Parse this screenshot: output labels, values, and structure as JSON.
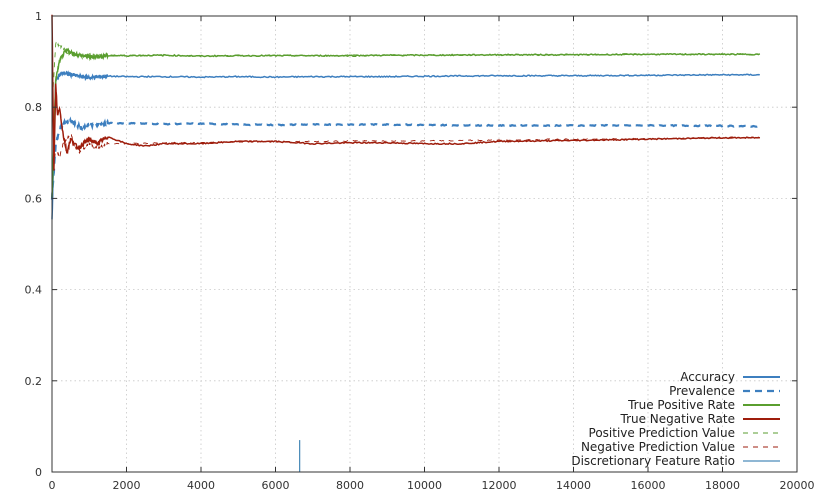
{
  "chart_data": {
    "type": "line",
    "title": "",
    "xlabel": "",
    "ylabel": "",
    "xlim": [
      0,
      20000
    ],
    "ylim": [
      0,
      1
    ],
    "x_ticks": [
      0,
      2000,
      4000,
      6000,
      8000,
      10000,
      12000,
      14000,
      16000,
      18000,
      20000
    ],
    "y_ticks": [
      0,
      0.2,
      0.4,
      0.6,
      0.8,
      1
    ],
    "x_tick_labels": [
      "0",
      "2000",
      "4000",
      "6000",
      "8000",
      "10000",
      "12000",
      "14000",
      "16000",
      "18000",
      "20000"
    ],
    "y_tick_labels": [
      "0",
      "0.2",
      "0.4",
      "0.6",
      "0.8",
      "1"
    ],
    "grid": true,
    "legend_position": "bottom-right",
    "series": [
      {
        "name": "Accuracy",
        "color": "#3d7fbf",
        "style": "solid",
        "x": [
          0,
          100,
          200,
          300,
          400,
          500,
          700,
          1000,
          1500,
          2000,
          3000,
          4000,
          5000,
          6000,
          7000,
          8000,
          9000,
          10000,
          12000,
          14000,
          16000,
          18000,
          19000
        ],
        "y": [
          0.55,
          0.86,
          0.87,
          0.875,
          0.873,
          0.872,
          0.868,
          0.865,
          0.868,
          0.867,
          0.867,
          0.866,
          0.867,
          0.866,
          0.867,
          0.867,
          0.867,
          0.868,
          0.869,
          0.869,
          0.87,
          0.871,
          0.871
        ]
      },
      {
        "name": "Prevalence",
        "color": "#3d7fbf",
        "style": "dashed",
        "x": [
          0,
          100,
          200,
          300,
          500,
          800,
          1000,
          1500,
          2000,
          3000,
          4000,
          5000,
          6000,
          7000,
          8000,
          9000,
          10000,
          12000,
          14000,
          16000,
          18000,
          19000
        ],
        "y": [
          0.6,
          0.72,
          0.75,
          0.765,
          0.77,
          0.755,
          0.76,
          0.765,
          0.765,
          0.763,
          0.764,
          0.762,
          0.761,
          0.762,
          0.762,
          0.762,
          0.761,
          0.76,
          0.76,
          0.76,
          0.759,
          0.758
        ]
      },
      {
        "name": "True Positive Rate",
        "color": "#5a9e2f",
        "style": "solid",
        "x": [
          0,
          100,
          200,
          300,
          400,
          500,
          700,
          1000,
          1500,
          2000,
          3000,
          4000,
          5000,
          6000,
          7000,
          8000,
          9000,
          10000,
          12000,
          14000,
          16000,
          18000,
          19000
        ],
        "y": [
          0.6,
          0.86,
          0.9,
          0.915,
          0.925,
          0.92,
          0.915,
          0.91,
          0.913,
          0.913,
          0.914,
          0.912,
          0.913,
          0.913,
          0.913,
          0.913,
          0.914,
          0.914,
          0.915,
          0.915,
          0.916,
          0.916,
          0.916
        ]
      },
      {
        "name": "True Negative Rate",
        "color": "#9e1d0c",
        "style": "solid",
        "x": [
          0,
          50,
          100,
          150,
          200,
          300,
          400,
          500,
          700,
          1000,
          1200,
          1500,
          2000,
          2500,
          3000,
          4000,
          5000,
          6000,
          7000,
          8000,
          9000,
          10000,
          11000,
          12000,
          14000,
          16000,
          18000,
          19000
        ],
        "y": [
          1.0,
          0.66,
          0.85,
          0.78,
          0.8,
          0.74,
          0.7,
          0.73,
          0.71,
          0.73,
          0.72,
          0.735,
          0.72,
          0.715,
          0.72,
          0.72,
          0.725,
          0.725,
          0.72,
          0.722,
          0.722,
          0.72,
          0.72,
          0.725,
          0.727,
          0.73,
          0.733,
          0.733
        ]
      },
      {
        "name": "Positive Prediction Value",
        "color": "#5a9e2f",
        "style": "dashed-thin",
        "x": [
          0,
          100,
          200,
          300,
          400,
          600,
          800,
          1000,
          1500,
          2000,
          3000,
          4000,
          5000,
          6000,
          8000,
          10000,
          12000,
          14000,
          16000,
          18000,
          19000
        ],
        "y": [
          0.8,
          0.94,
          0.935,
          0.93,
          0.92,
          0.915,
          0.91,
          0.915,
          0.915,
          0.914,
          0.913,
          0.913,
          0.913,
          0.913,
          0.914,
          0.914,
          0.915,
          0.915,
          0.916,
          0.916,
          0.916
        ]
      },
      {
        "name": "Negative Prediction Value",
        "color": "#9e1d0c",
        "style": "dashed-thin",
        "x": [
          0,
          100,
          200,
          300,
          500,
          700,
          1000,
          1200,
          1500,
          2000,
          3000,
          4000,
          5000,
          6000,
          7000,
          8000,
          9000,
          10000,
          12000,
          14000,
          16000,
          18000,
          19000
        ],
        "y": [
          0.62,
          0.71,
          0.69,
          0.72,
          0.74,
          0.7,
          0.72,
          0.71,
          0.72,
          0.72,
          0.722,
          0.722,
          0.724,
          0.724,
          0.725,
          0.726,
          0.726,
          0.726,
          0.728,
          0.73,
          0.731,
          0.732,
          0.733
        ]
      },
      {
        "name": "Discretionary Feature Ratio",
        "color": "#1f6fa8",
        "style": "impulse",
        "x": [
          6650
        ],
        "y": [
          0.07
        ]
      }
    ]
  }
}
